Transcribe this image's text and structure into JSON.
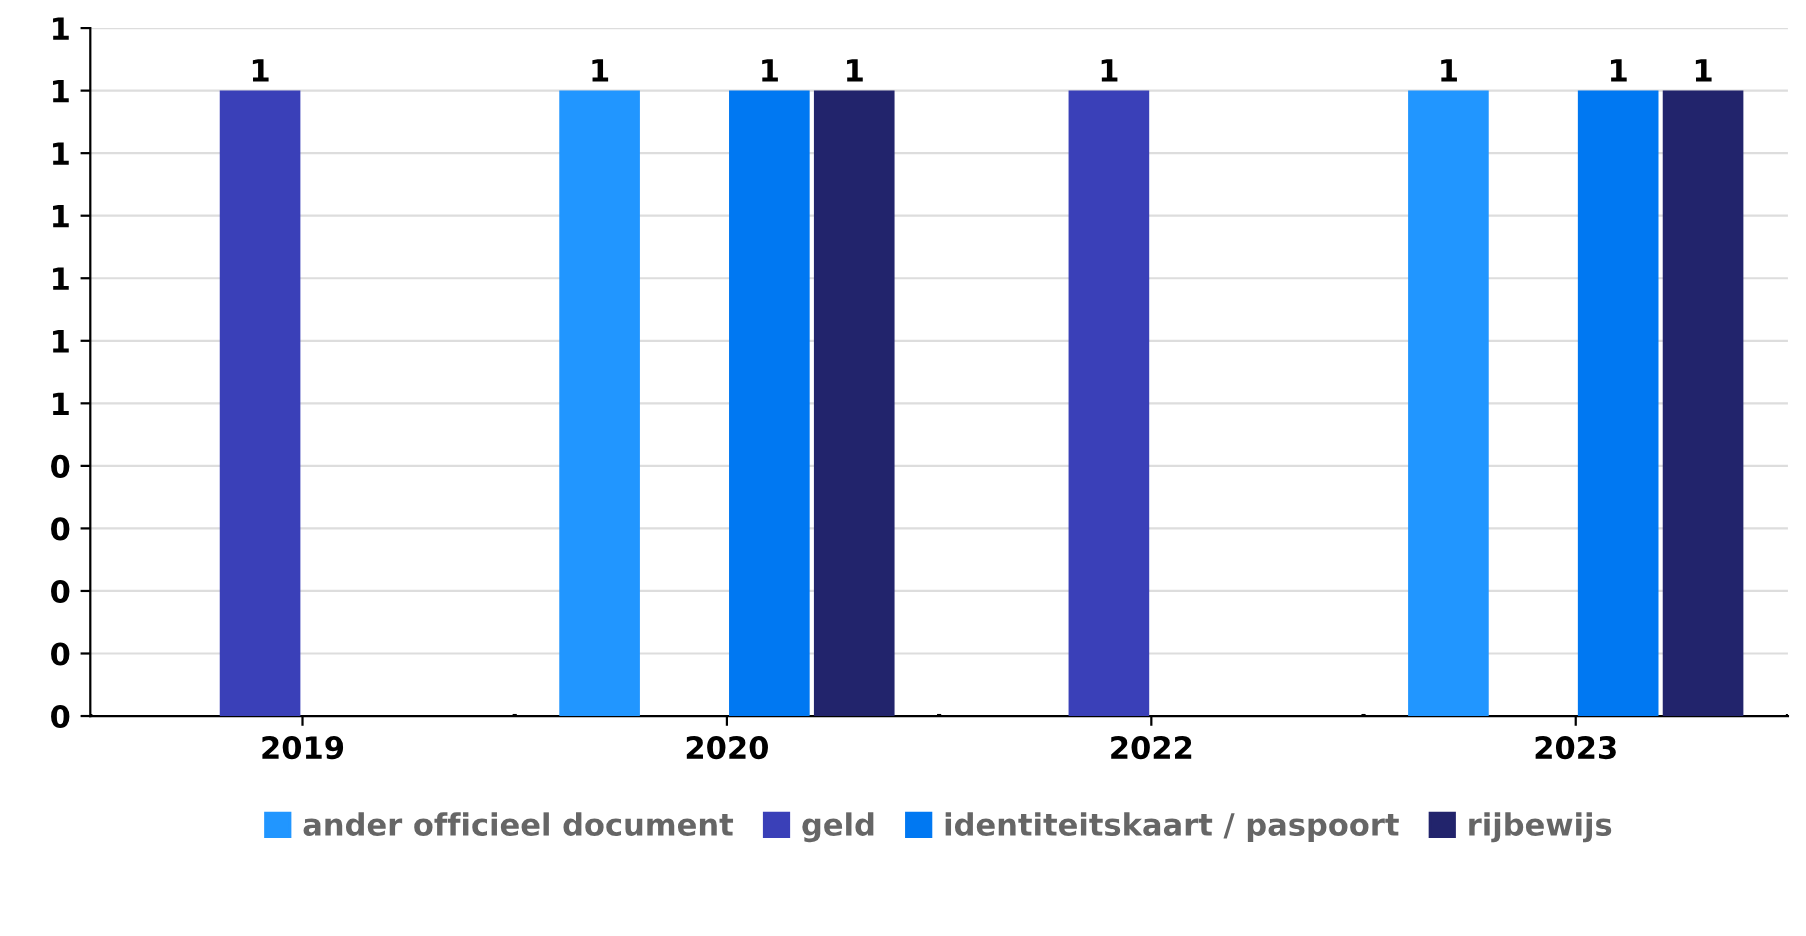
{
  "chart_data": {
    "type": "bar",
    "categories": [
      "2019",
      "2020",
      "2022",
      "2023"
    ],
    "series": [
      {
        "name": "ander officieel document",
        "color": "#2196ff",
        "values": [
          null,
          1,
          null,
          1
        ],
        "value_labels": [
          null,
          "1",
          null,
          "1"
        ]
      },
      {
        "name": "geld",
        "color": "#3a40b8",
        "values": [
          1,
          null,
          1,
          null
        ],
        "value_labels": [
          "1",
          null,
          "1",
          null
        ]
      },
      {
        "name": "identiteitskaart / paspoort",
        "color": "#0078f2",
        "values": [
          null,
          1,
          null,
          1
        ],
        "value_labels": [
          null,
          "1",
          null,
          "1"
        ]
      },
      {
        "name": "rijbewijs",
        "color": "#22246c",
        "values": [
          null,
          1,
          null,
          1
        ],
        "value_labels": [
          null,
          "1",
          null,
          "1"
        ]
      }
    ],
    "ylim": [
      0,
      1.1
    ],
    "yticks": [
      {
        "value": 0,
        "label": "0"
      },
      {
        "value": 0.1,
        "label": "0"
      },
      {
        "value": 0.2,
        "label": "0"
      },
      {
        "value": 0.3,
        "label": "0"
      },
      {
        "value": 0.4,
        "label": "0"
      },
      {
        "value": 0.5,
        "label": "1"
      },
      {
        "value": 0.6,
        "label": "1"
      },
      {
        "value": 0.7,
        "label": "1"
      },
      {
        "value": 0.8,
        "label": "1"
      },
      {
        "value": 0.9,
        "label": "1"
      },
      {
        "value": 1.0,
        "label": "1"
      },
      {
        "value": 1.1,
        "label": "1"
      }
    ],
    "grid": "y",
    "legend": "bottom"
  }
}
